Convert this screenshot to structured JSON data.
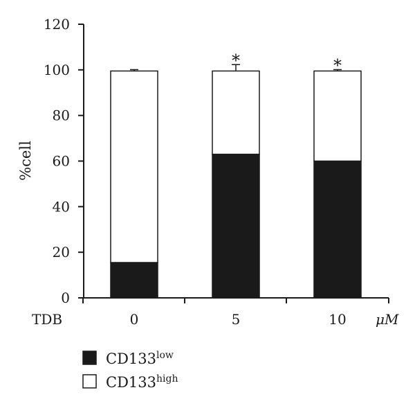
{
  "chart_data": {
    "type": "bar",
    "stacked": true,
    "title": "",
    "xlabel": "TDB",
    "x_unit": "μM",
    "ylabel": "%cell",
    "ylim": [
      0,
      120
    ],
    "yticks": [
      0,
      20,
      40,
      60,
      80,
      100,
      120
    ],
    "categories": [
      "0",
      "5",
      "10"
    ],
    "series": [
      {
        "name_base": "CD133",
        "name_sup": "low",
        "color": "#1a1a1a",
        "values": [
          15.5,
          63,
          60
        ],
        "errors": [
          0.6,
          3,
          0.6
        ],
        "significance": [
          "",
          "*",
          "*"
        ]
      },
      {
        "name_base": "CD133",
        "name_sup": "high",
        "color": "#ffffff",
        "values": [
          84,
          36.5,
          39.5
        ],
        "errors": [
          0.6,
          2.8,
          0.6
        ],
        "significance": [
          "",
          "*",
          "*"
        ]
      }
    ],
    "legend_position": "bottom-left",
    "grid": false
  }
}
